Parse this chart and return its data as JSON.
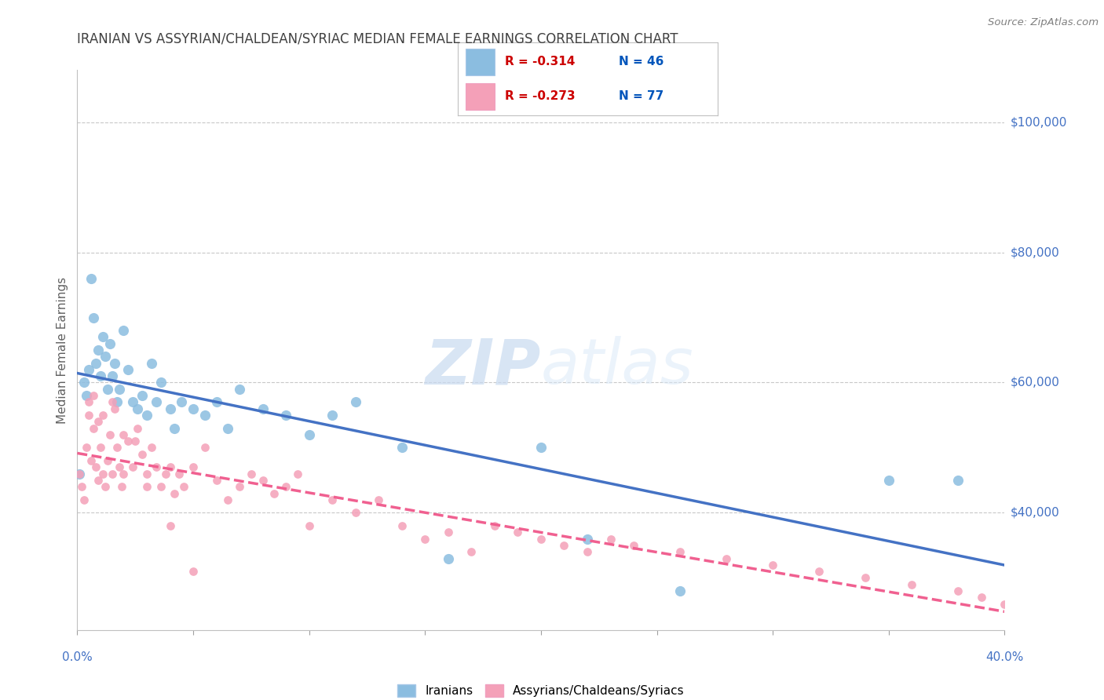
{
  "title": "IRANIAN VS ASSYRIAN/CHALDEAN/SYRIAC MEDIAN FEMALE EARNINGS CORRELATION CHART",
  "source": "Source: ZipAtlas.com",
  "ylabel": "Median Female Earnings",
  "right_ytick_labels": [
    "$100,000",
    "$80,000",
    "$60,000",
    "$40,000"
  ],
  "right_ytick_values": [
    100000,
    80000,
    60000,
    40000
  ],
  "legend_r1": "-0.314",
  "legend_n1": "46",
  "legend_r2": "-0.273",
  "legend_n2": "77",
  "watermark_zip": "ZIP",
  "watermark_atlas": "atlas",
  "blue_color": "#8BBDE0",
  "pink_color": "#F4A0B8",
  "blue_line_color": "#4472C4",
  "pink_line_color": "#F06090",
  "title_color": "#404040",
  "right_label_color": "#4472C4",
  "xmin": 0.0,
  "xmax": 0.4,
  "ymin": 22000,
  "ymax": 108000,
  "iranians_x": [
    0.001,
    0.003,
    0.004,
    0.005,
    0.006,
    0.007,
    0.008,
    0.009,
    0.01,
    0.011,
    0.012,
    0.013,
    0.014,
    0.015,
    0.016,
    0.017,
    0.018,
    0.02,
    0.022,
    0.024,
    0.026,
    0.028,
    0.03,
    0.032,
    0.034,
    0.036,
    0.04,
    0.042,
    0.045,
    0.05,
    0.055,
    0.06,
    0.065,
    0.07,
    0.08,
    0.09,
    0.1,
    0.11,
    0.12,
    0.14,
    0.16,
    0.2,
    0.22,
    0.26,
    0.35,
    0.38
  ],
  "iranians_y": [
    46000,
    60000,
    58000,
    62000,
    76000,
    70000,
    63000,
    65000,
    61000,
    67000,
    64000,
    59000,
    66000,
    61000,
    63000,
    57000,
    59000,
    68000,
    62000,
    57000,
    56000,
    58000,
    55000,
    63000,
    57000,
    60000,
    56000,
    53000,
    57000,
    56000,
    55000,
    57000,
    53000,
    59000,
    56000,
    55000,
    52000,
    55000,
    57000,
    50000,
    33000,
    50000,
    36000,
    28000,
    45000,
    45000
  ],
  "assyrian_x": [
    0.001,
    0.002,
    0.003,
    0.004,
    0.005,
    0.006,
    0.007,
    0.008,
    0.009,
    0.01,
    0.011,
    0.012,
    0.013,
    0.014,
    0.015,
    0.016,
    0.017,
    0.018,
    0.019,
    0.02,
    0.022,
    0.024,
    0.026,
    0.028,
    0.03,
    0.032,
    0.034,
    0.036,
    0.038,
    0.04,
    0.042,
    0.044,
    0.046,
    0.05,
    0.055,
    0.06,
    0.065,
    0.07,
    0.075,
    0.08,
    0.085,
    0.09,
    0.095,
    0.1,
    0.11,
    0.12,
    0.13,
    0.14,
    0.15,
    0.16,
    0.17,
    0.18,
    0.19,
    0.2,
    0.21,
    0.22,
    0.23,
    0.24,
    0.26,
    0.28,
    0.3,
    0.32,
    0.34,
    0.36,
    0.38,
    0.39,
    0.4,
    0.005,
    0.007,
    0.009,
    0.011,
    0.015,
    0.02,
    0.025,
    0.03,
    0.04,
    0.05
  ],
  "assyrian_y": [
    46000,
    44000,
    42000,
    50000,
    55000,
    48000,
    53000,
    47000,
    45000,
    50000,
    46000,
    44000,
    48000,
    52000,
    46000,
    56000,
    50000,
    47000,
    44000,
    46000,
    51000,
    47000,
    53000,
    49000,
    44000,
    50000,
    47000,
    44000,
    46000,
    47000,
    43000,
    46000,
    44000,
    47000,
    50000,
    45000,
    42000,
    44000,
    46000,
    45000,
    43000,
    44000,
    46000,
    38000,
    42000,
    40000,
    42000,
    38000,
    36000,
    37000,
    34000,
    38000,
    37000,
    36000,
    35000,
    34000,
    36000,
    35000,
    34000,
    33000,
    32000,
    31000,
    30000,
    29000,
    28000,
    27000,
    26000,
    57000,
    58000,
    54000,
    55000,
    57000,
    52000,
    51000,
    46000,
    38000,
    31000
  ]
}
